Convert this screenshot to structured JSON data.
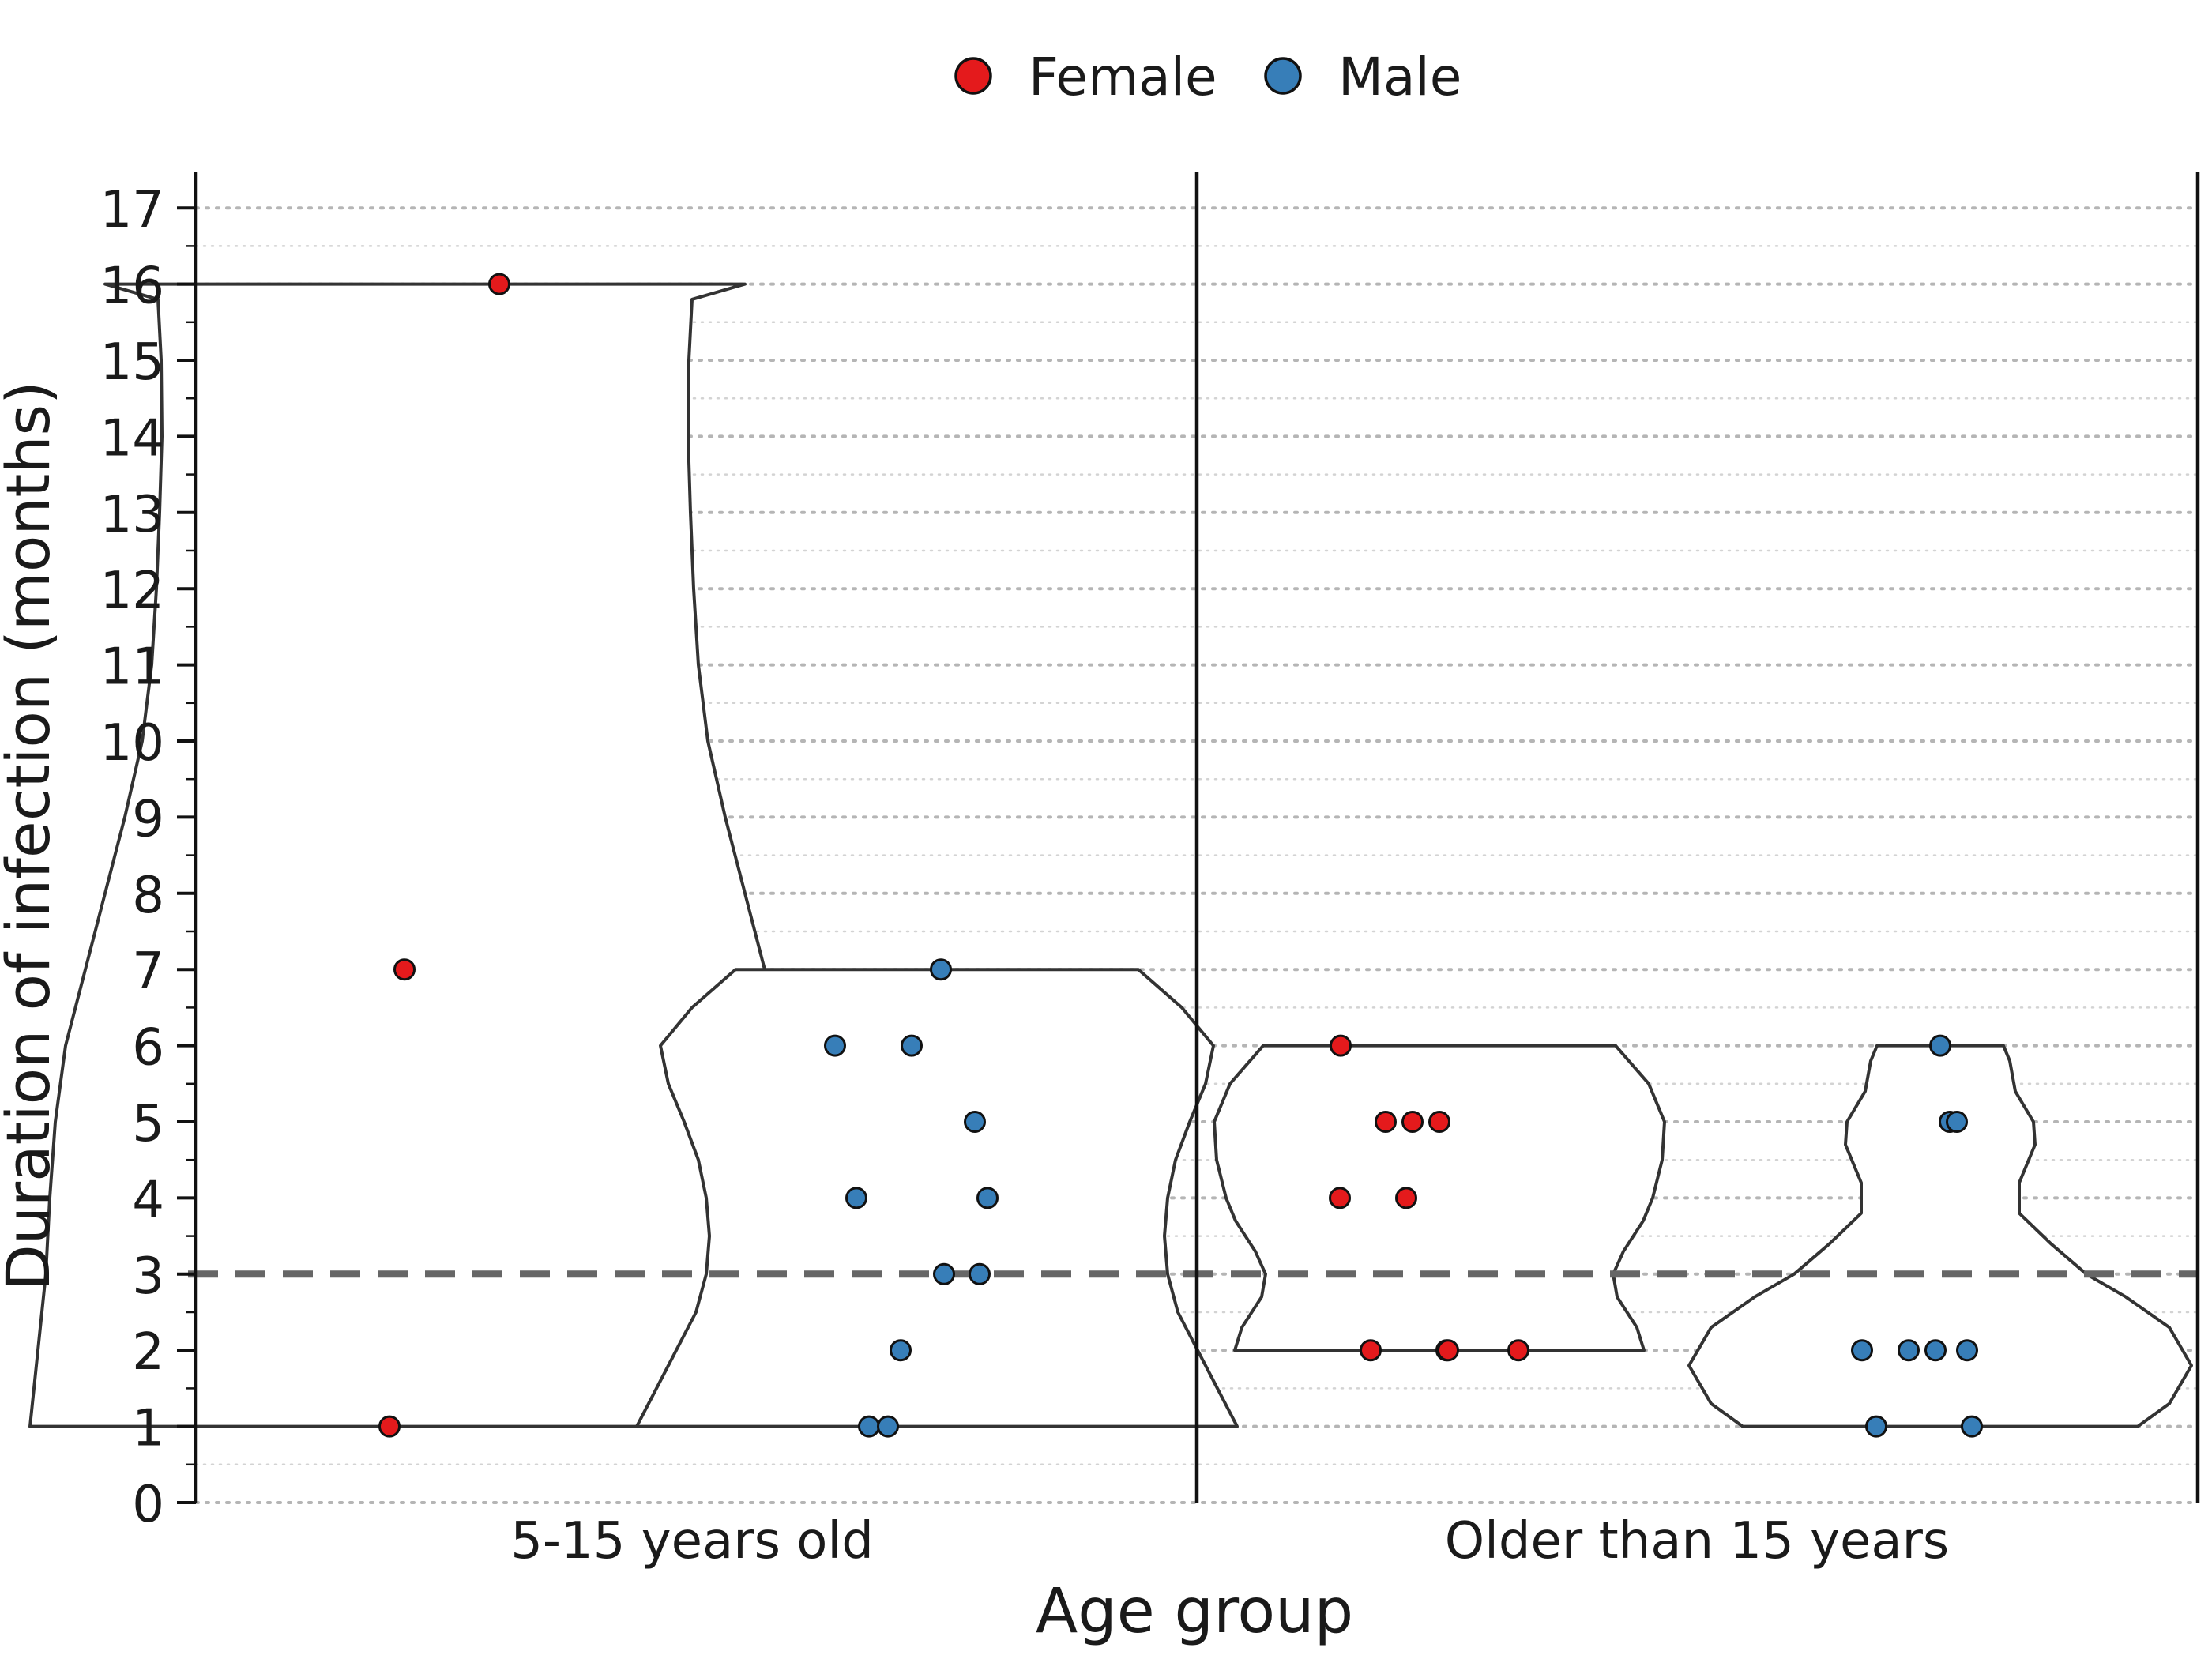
{
  "chart_data": {
    "type": "violin",
    "xlabel": "Age group",
    "ylabel": "Duration of infection (months)",
    "categories": [
      "5-15 years old",
      "Older than 15 years"
    ],
    "ylim": [
      0,
      17.5
    ],
    "yticks": [
      0,
      1,
      2,
      3,
      4,
      5,
      6,
      7,
      8,
      9,
      10,
      11,
      12,
      13,
      14,
      15,
      16,
      17
    ],
    "grid": "horizontal dotted",
    "reference_line": {
      "y": 3,
      "style": "dashed",
      "color": "#666666"
    },
    "legend": {
      "position": "top-center"
    },
    "series": [
      {
        "name": "Female",
        "color": "#e41a1c",
        "points": [
          {
            "group": "5-15 years old",
            "values": [
              1,
              7,
              16
            ]
          },
          {
            "group": "Older than 15 years",
            "values": [
              2,
              2,
              2,
              2,
              4,
              4,
              5,
              5,
              5,
              6
            ]
          }
        ]
      },
      {
        "name": "Male",
        "color": "#377eb8",
        "points": [
          {
            "group": "5-15 years old",
            "values": [
              1,
              1,
              2,
              3,
              3,
              4,
              4,
              5,
              6,
              6,
              7
            ]
          },
          {
            "group": "Older than 15 years",
            "values": [
              1,
              1,
              2,
              2,
              2,
              2,
              5,
              5,
              6
            ]
          }
        ]
      }
    ]
  }
}
